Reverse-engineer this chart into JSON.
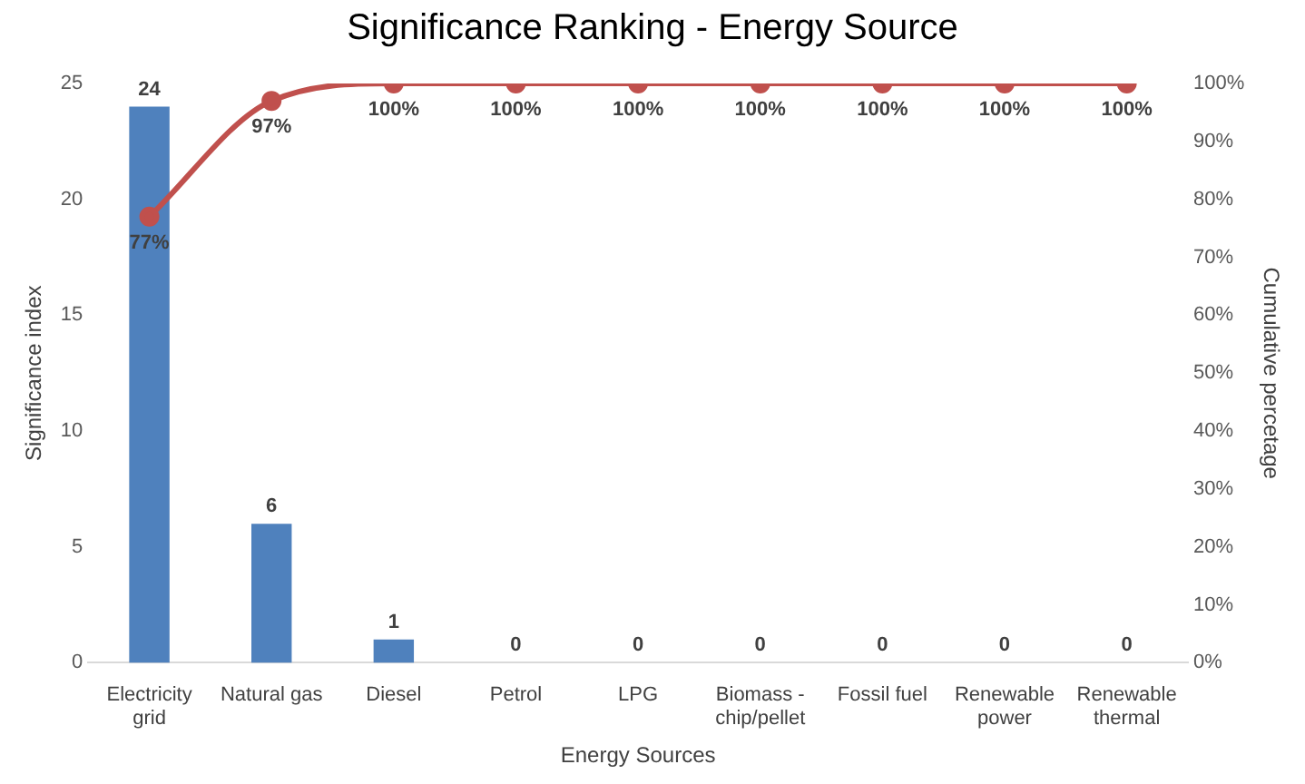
{
  "chart_data": {
    "type": "bar",
    "title": "Significance Ranking - Energy Source",
    "xlabel": "Energy Sources",
    "ylabel": "Significance index",
    "y2label": "Cumulative percetage",
    "categories": [
      "Electricity grid",
      "Natural gas",
      "Diesel",
      "Petrol",
      "LPG",
      "Biomass - chip/pellet",
      "Fossil fuel",
      "Renewable power",
      "Renewable thermal"
    ],
    "series": [
      {
        "color": "#4f81bd",
        "values": [
          24,
          6,
          1,
          0,
          0,
          0,
          0,
          0,
          0
        ],
        "value_labels": [
          "24",
          "6",
          "1",
          "0",
          "0",
          "0",
          "0",
          "0",
          "0"
        ]
      },
      {
        "type": "line",
        "axis": "y2",
        "color": "#c0504d",
        "values": [
          77,
          97,
          100,
          100,
          100,
          100,
          100,
          100,
          100
        ],
        "value_labels": [
          "77%",
          "97%",
          "100%",
          "100%",
          "100%",
          "100%",
          "100%",
          "100%",
          "100%"
        ]
      }
    ],
    "ylim": [
      0,
      25
    ],
    "yticks": [
      0,
      5,
      10,
      15,
      20,
      25
    ],
    "y2lim": [
      0,
      100
    ],
    "y2ticks": [
      {
        "value": 0,
        "label": "0%"
      },
      {
        "value": 10,
        "label": "10%"
      },
      {
        "value": 20,
        "label": "20%"
      },
      {
        "value": 30,
        "label": "30%"
      },
      {
        "value": 40,
        "label": "40%"
      },
      {
        "value": 50,
        "label": "50%"
      },
      {
        "value": 60,
        "label": "60%"
      },
      {
        "value": 70,
        "label": "70%"
      },
      {
        "value": 80,
        "label": "80%"
      },
      {
        "value": 90,
        "label": "90%"
      },
      {
        "value": 100,
        "label": "100%"
      }
    ],
    "grid": false,
    "legend": false,
    "marker": "circle",
    "line_style": "solid"
  }
}
